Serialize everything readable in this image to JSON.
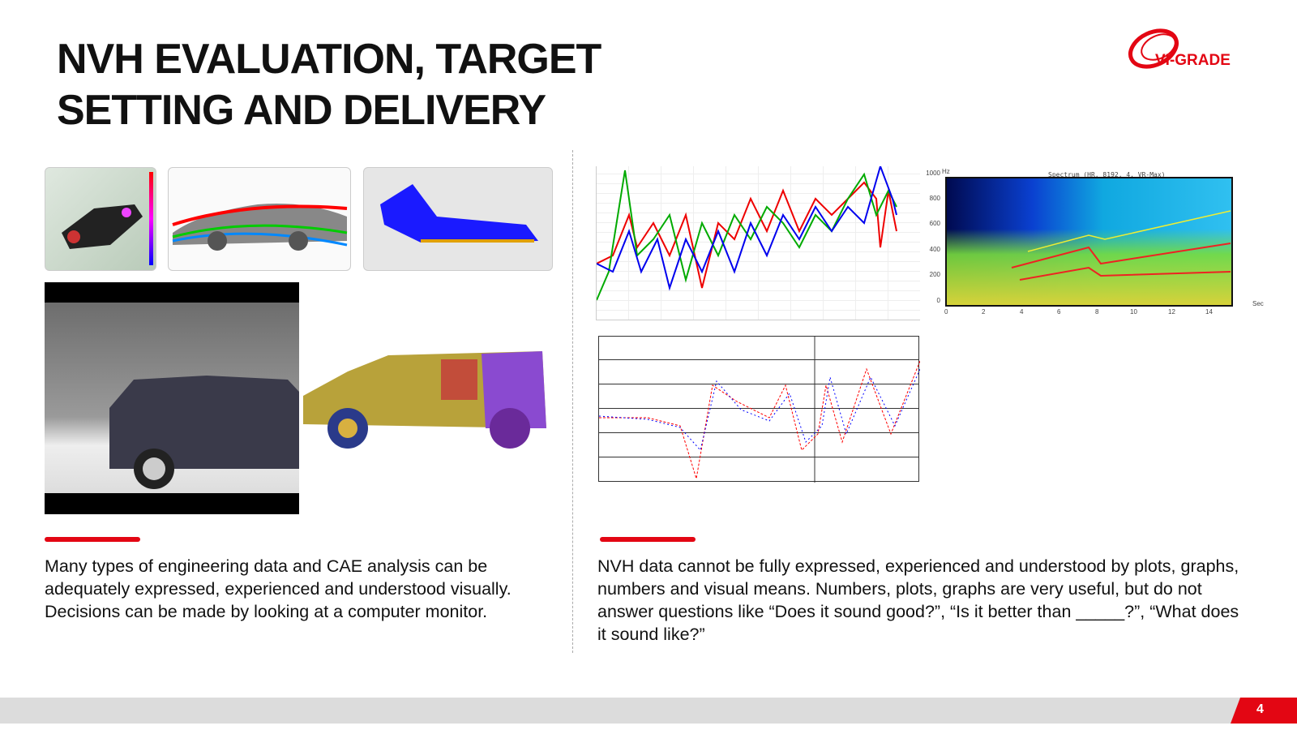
{
  "slide": {
    "title_line1": "NVH EVALUATION, TARGET",
    "title_line2": "SETTING AND DELIVERY",
    "page_number": "4"
  },
  "logo": {
    "text": "VI-GRADE"
  },
  "left": {
    "text": "Many types of engineering data and CAE analysis can be adequately expressed, experienced and understood visually. Decisions can be made by looking at a computer monitor."
  },
  "right": {
    "text": "NVH data cannot be fully expressed, experienced and understood by plots, graphs, numbers and visual means. Numbers, plots, graphs are very useful, but do not answer questions like “Does it sound good?”, “Is it better than _____?”, “What does it sound like?”"
  },
  "spectrogram": {
    "title": "Spectrum (HR, 8192, 4, VR-Max)",
    "y_unit": "Hz",
    "x_unit": "Sec",
    "y_ticks": [
      "0",
      "200",
      "400",
      "600",
      "800",
      "1000"
    ],
    "x_ticks": [
      "0",
      "2",
      "4",
      "6",
      "8",
      "10",
      "12",
      "14"
    ]
  },
  "colors": {
    "accent": "#e30613",
    "footer": "#dcdcdc"
  }
}
